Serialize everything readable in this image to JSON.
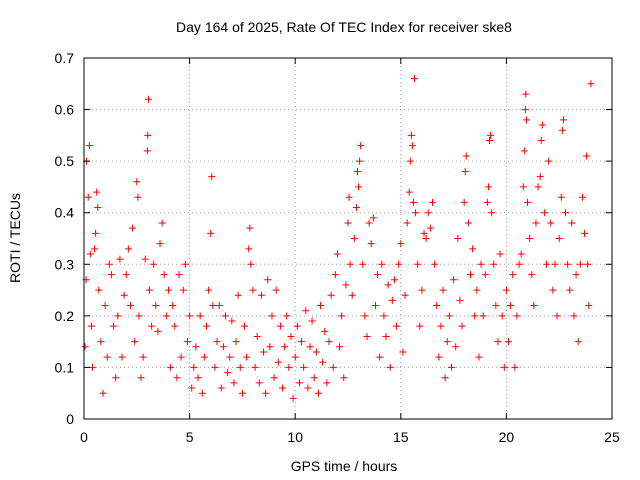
{
  "chart_data": {
    "type": "scatter",
    "title": "Day 164 of 2025, Rate Of TEC Index for receiver ske8",
    "xlabel": "GPS time / hours",
    "ylabel": "ROTI / TECUs",
    "xlim": [
      0,
      25
    ],
    "ylim": [
      0,
      0.7
    ],
    "x_ticks": [
      0,
      5,
      10,
      15,
      20,
      25
    ],
    "x_tick_labels": [
      "0",
      "5",
      "10",
      "15",
      "20",
      "25"
    ],
    "y_ticks": [
      0,
      0.1,
      0.2,
      0.3,
      0.4,
      0.5,
      0.6,
      0.7
    ],
    "y_tick_labels": [
      "0",
      "0.1",
      "0.2",
      "0.3",
      "0.4",
      "0.5",
      "0.6",
      "0.7"
    ],
    "grid": true,
    "marker": "plus",
    "color": "#ff0000",
    "series": [
      {
        "name": "ROTI",
        "points": [
          [
            0.05,
            0.14
          ],
          [
            0.1,
            0.27
          ],
          [
            0.12,
            0.5
          ],
          [
            0.2,
            0.43
          ],
          [
            0.25,
            0.53
          ],
          [
            0.3,
            0.32
          ],
          [
            0.35,
            0.18
          ],
          [
            0.4,
            0.1
          ],
          [
            0.5,
            0.33
          ],
          [
            0.55,
            0.36
          ],
          [
            0.6,
            0.44
          ],
          [
            0.65,
            0.41
          ],
          [
            0.7,
            0.25
          ],
          [
            0.8,
            0.15
          ],
          [
            0.9,
            0.05
          ],
          [
            1.0,
            0.22
          ],
          [
            1.1,
            0.12
          ],
          [
            1.2,
            0.3
          ],
          [
            1.3,
            0.28
          ],
          [
            1.4,
            0.18
          ],
          [
            1.5,
            0.08
          ],
          [
            1.6,
            0.2
          ],
          [
            1.7,
            0.31
          ],
          [
            1.8,
            0.12
          ],
          [
            1.9,
            0.24
          ],
          [
            2.0,
            0.28
          ],
          [
            2.1,
            0.33
          ],
          [
            2.2,
            0.22
          ],
          [
            2.3,
            0.37
          ],
          [
            2.4,
            0.15
          ],
          [
            2.5,
            0.46
          ],
          [
            2.55,
            0.43
          ],
          [
            2.6,
            0.2
          ],
          [
            2.7,
            0.08
          ],
          [
            2.8,
            0.12
          ],
          [
            2.9,
            0.31
          ],
          [
            3.0,
            0.52
          ],
          [
            3.02,
            0.55
          ],
          [
            3.05,
            0.62
          ],
          [
            3.1,
            0.25
          ],
          [
            3.2,
            0.18
          ],
          [
            3.3,
            0.3
          ],
          [
            3.4,
            0.22
          ],
          [
            3.5,
            0.17
          ],
          [
            3.6,
            0.34
          ],
          [
            3.7,
            0.38
          ],
          [
            3.8,
            0.28
          ],
          [
            3.9,
            0.2
          ],
          [
            4.0,
            0.25
          ],
          [
            4.1,
            0.1
          ],
          [
            4.2,
            0.22
          ],
          [
            4.3,
            0.18
          ],
          [
            4.4,
            0.08
          ],
          [
            4.5,
            0.28
          ],
          [
            4.6,
            0.12
          ],
          [
            4.7,
            0.25
          ],
          [
            4.8,
            0.3
          ],
          [
            4.9,
            0.15
          ],
          [
            5.0,
            0.2
          ],
          [
            5.1,
            0.06
          ],
          [
            5.2,
            0.1
          ],
          [
            5.3,
            0.14
          ],
          [
            5.4,
            0.08
          ],
          [
            5.5,
            0.2
          ],
          [
            5.6,
            0.05
          ],
          [
            5.7,
            0.12
          ],
          [
            5.8,
            0.18
          ],
          [
            5.9,
            0.25
          ],
          [
            6.0,
            0.36
          ],
          [
            6.05,
            0.47
          ],
          [
            6.1,
            0.22
          ],
          [
            6.2,
            0.1
          ],
          [
            6.3,
            0.15
          ],
          [
            6.4,
            0.22
          ],
          [
            6.5,
            0.06
          ],
          [
            6.6,
            0.14
          ],
          [
            6.7,
            0.2
          ],
          [
            6.8,
            0.09
          ],
          [
            6.9,
            0.12
          ],
          [
            7.0,
            0.19
          ],
          [
            7.1,
            0.07
          ],
          [
            7.2,
            0.15
          ],
          [
            7.3,
            0.24
          ],
          [
            7.4,
            0.1
          ],
          [
            7.5,
            0.05
          ],
          [
            7.6,
            0.18
          ],
          [
            7.7,
            0.12
          ],
          [
            7.8,
            0.33
          ],
          [
            7.85,
            0.37
          ],
          [
            7.9,
            0.3
          ],
          [
            8.0,
            0.25
          ],
          [
            8.1,
            0.1
          ],
          [
            8.2,
            0.16
          ],
          [
            8.3,
            0.07
          ],
          [
            8.4,
            0.24
          ],
          [
            8.5,
            0.13
          ],
          [
            8.6,
            0.05
          ],
          [
            8.7,
            0.27
          ],
          [
            8.8,
            0.14
          ],
          [
            8.9,
            0.2
          ],
          [
            9.0,
            0.08
          ],
          [
            9.1,
            0.25
          ],
          [
            9.2,
            0.11
          ],
          [
            9.3,
            0.18
          ],
          [
            9.4,
            0.06
          ],
          [
            9.5,
            0.14
          ],
          [
            9.6,
            0.2
          ],
          [
            9.7,
            0.1
          ],
          [
            9.8,
            0.16
          ],
          [
            9.9,
            0.04
          ],
          [
            10.0,
            0.12
          ],
          [
            10.1,
            0.18
          ],
          [
            10.2,
            0.07
          ],
          [
            10.3,
            0.15
          ],
          [
            10.4,
            0.1
          ],
          [
            10.5,
            0.21
          ],
          [
            10.6,
            0.06
          ],
          [
            10.7,
            0.14
          ],
          [
            10.8,
            0.19
          ],
          [
            10.9,
            0.08
          ],
          [
            11.0,
            0.13
          ],
          [
            11.1,
            0.05
          ],
          [
            11.2,
            0.22
          ],
          [
            11.3,
            0.11
          ],
          [
            11.4,
            0.17
          ],
          [
            11.5,
            0.07
          ],
          [
            11.6,
            0.15
          ],
          [
            11.7,
            0.24
          ],
          [
            11.8,
            0.1
          ],
          [
            11.9,
            0.28
          ],
          [
            12.0,
            0.32
          ],
          [
            12.1,
            0.14
          ],
          [
            12.2,
            0.2
          ],
          [
            12.3,
            0.08
          ],
          [
            12.4,
            0.26
          ],
          [
            12.5,
            0.38
          ],
          [
            12.55,
            0.43
          ],
          [
            12.6,
            0.3
          ],
          [
            12.7,
            0.24
          ],
          [
            12.8,
            0.35
          ],
          [
            12.9,
            0.41
          ],
          [
            12.95,
            0.48
          ],
          [
            13.0,
            0.45
          ],
          [
            13.05,
            0.5
          ],
          [
            13.1,
            0.53
          ],
          [
            13.2,
            0.3
          ],
          [
            13.3,
            0.2
          ],
          [
            13.4,
            0.16
          ],
          [
            13.5,
            0.38
          ],
          [
            13.6,
            0.34
          ],
          [
            13.7,
            0.39
          ],
          [
            13.8,
            0.22
          ],
          [
            13.9,
            0.28
          ],
          [
            14.0,
            0.12
          ],
          [
            14.1,
            0.3
          ],
          [
            14.2,
            0.2
          ],
          [
            14.3,
            0.16
          ],
          [
            14.4,
            0.26
          ],
          [
            14.5,
            0.1
          ],
          [
            14.6,
            0.23
          ],
          [
            14.7,
            0.27
          ],
          [
            14.8,
            0.18
          ],
          [
            14.9,
            0.3
          ],
          [
            15.0,
            0.34
          ],
          [
            15.1,
            0.13
          ],
          [
            15.2,
            0.24
          ],
          [
            15.3,
            0.38
          ],
          [
            15.4,
            0.44
          ],
          [
            15.45,
            0.5
          ],
          [
            15.5,
            0.55
          ],
          [
            15.55,
            0.53
          ],
          [
            15.6,
            0.42
          ],
          [
            15.65,
            0.66
          ],
          [
            15.7,
            0.4
          ],
          [
            15.8,
            0.3
          ],
          [
            15.9,
            0.18
          ],
          [
            16.0,
            0.25
          ],
          [
            16.1,
            0.36
          ],
          [
            16.2,
            0.35
          ],
          [
            16.3,
            0.4
          ],
          [
            16.4,
            0.37
          ],
          [
            16.5,
            0.42
          ],
          [
            16.6,
            0.3
          ],
          [
            16.7,
            0.22
          ],
          [
            16.8,
            0.12
          ],
          [
            16.9,
            0.18
          ],
          [
            17.0,
            0.25
          ],
          [
            17.1,
            0.08
          ],
          [
            17.2,
            0.15
          ],
          [
            17.3,
            0.2
          ],
          [
            17.4,
            0.1
          ],
          [
            17.5,
            0.27
          ],
          [
            17.6,
            0.14
          ],
          [
            17.7,
            0.35
          ],
          [
            17.8,
            0.23
          ],
          [
            17.9,
            0.18
          ],
          [
            18.0,
            0.42
          ],
          [
            18.05,
            0.48
          ],
          [
            18.1,
            0.51
          ],
          [
            18.2,
            0.38
          ],
          [
            18.3,
            0.28
          ],
          [
            18.4,
            0.33
          ],
          [
            18.5,
            0.2
          ],
          [
            18.6,
            0.25
          ],
          [
            18.7,
            0.12
          ],
          [
            18.8,
            0.3
          ],
          [
            18.9,
            0.2
          ],
          [
            19.0,
            0.28
          ],
          [
            19.1,
            0.42
          ],
          [
            19.15,
            0.45
          ],
          [
            19.2,
            0.54
          ],
          [
            19.25,
            0.55
          ],
          [
            19.3,
            0.4
          ],
          [
            19.4,
            0.3
          ],
          [
            19.5,
            0.22
          ],
          [
            19.6,
            0.15
          ],
          [
            19.7,
            0.32
          ],
          [
            19.8,
            0.2
          ],
          [
            19.9,
            0.1
          ],
          [
            20.0,
            0.25
          ],
          [
            20.1,
            0.15
          ],
          [
            20.2,
            0.22
          ],
          [
            20.3,
            0.28
          ],
          [
            20.4,
            0.1
          ],
          [
            20.5,
            0.2
          ],
          [
            20.6,
            0.3
          ],
          [
            20.7,
            0.32
          ],
          [
            20.8,
            0.45
          ],
          [
            20.85,
            0.52
          ],
          [
            20.9,
            0.6
          ],
          [
            20.92,
            0.63
          ],
          [
            20.95,
            0.58
          ],
          [
            21.0,
            0.42
          ],
          [
            21.1,
            0.35
          ],
          [
            21.2,
            0.28
          ],
          [
            21.3,
            0.22
          ],
          [
            21.4,
            0.38
          ],
          [
            21.5,
            0.45
          ],
          [
            21.6,
            0.47
          ],
          [
            21.65,
            0.54
          ],
          [
            21.7,
            0.57
          ],
          [
            21.8,
            0.4
          ],
          [
            21.9,
            0.3
          ],
          [
            22.0,
            0.5
          ],
          [
            22.1,
            0.38
          ],
          [
            22.2,
            0.25
          ],
          [
            22.3,
            0.3
          ],
          [
            22.4,
            0.2
          ],
          [
            22.5,
            0.35
          ],
          [
            22.6,
            0.43
          ],
          [
            22.65,
            0.56
          ],
          [
            22.7,
            0.58
          ],
          [
            22.8,
            0.4
          ],
          [
            22.9,
            0.3
          ],
          [
            23.0,
            0.25
          ],
          [
            23.1,
            0.38
          ],
          [
            23.2,
            0.2
          ],
          [
            23.3,
            0.28
          ],
          [
            23.4,
            0.15
          ],
          [
            23.5,
            0.3
          ],
          [
            23.6,
            0.43
          ],
          [
            23.7,
            0.36
          ],
          [
            23.8,
            0.51
          ],
          [
            23.85,
            0.3
          ],
          [
            23.9,
            0.22
          ],
          [
            24.0,
            0.65
          ]
        ]
      }
    ]
  }
}
